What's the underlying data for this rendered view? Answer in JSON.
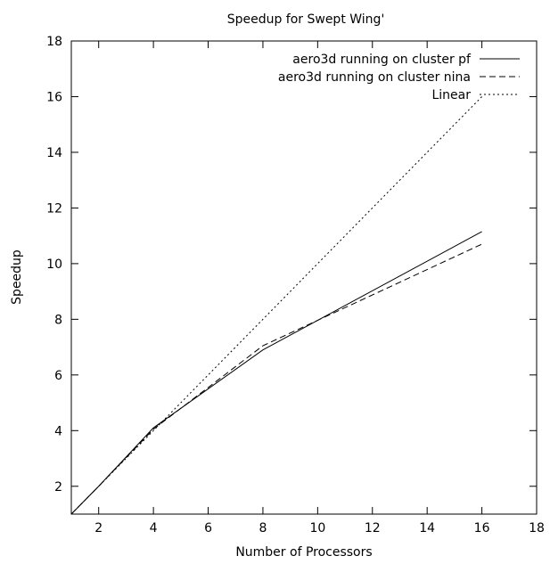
{
  "chart_data": {
    "type": "line",
    "title": "Speedup for Swept Wing'",
    "xlabel": "Number of Processors",
    "ylabel": "Speedup",
    "xlim": [
      1,
      18
    ],
    "ylim": [
      1,
      18
    ],
    "xticks": [
      2,
      4,
      6,
      8,
      10,
      12,
      14,
      16,
      18
    ],
    "yticks": [
      2,
      4,
      6,
      8,
      10,
      12,
      14,
      16,
      18
    ],
    "grid": false,
    "legend_position": "top-right",
    "series": [
      {
        "name": "aero3d running on cluster pf",
        "style": "solid",
        "x": [
          1,
          2,
          4,
          8,
          16
        ],
        "y": [
          1,
          2,
          4.1,
          6.9,
          11.15
        ]
      },
      {
        "name": "aero3d running on cluster nina",
        "style": "dashed",
        "x": [
          1,
          2,
          4,
          8,
          16
        ],
        "y": [
          1,
          2,
          4.05,
          7.05,
          10.7
        ]
      },
      {
        "name": "Linear",
        "style": "dotted",
        "x": [
          1,
          16
        ],
        "y": [
          1,
          16
        ]
      }
    ]
  }
}
